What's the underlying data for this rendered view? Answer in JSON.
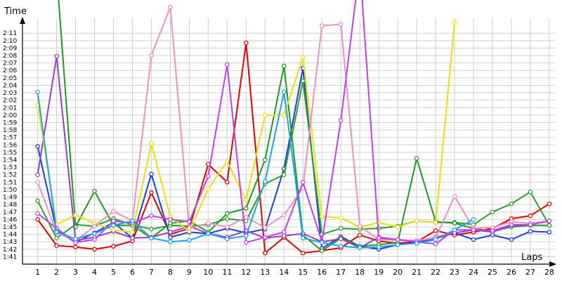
{
  "chart_data": {
    "type": "line",
    "ylabel": "Time",
    "xlabel": "Laps",
    "x": [
      1,
      2,
      3,
      4,
      5,
      6,
      7,
      8,
      9,
      10,
      11,
      12,
      13,
      14,
      15,
      16,
      17,
      18,
      19,
      20,
      21,
      22,
      23,
      24,
      25,
      26,
      27,
      28
    ],
    "xlim": [
      0.2,
      28.3
    ],
    "ylim": [
      "1:40",
      "2:13"
    ],
    "ytick_labels": [
      "1:41",
      "1:42",
      "1:43",
      "1:44",
      "1:45",
      "1:46",
      "1:47",
      "1:48",
      "1:49",
      "1:50",
      "1:51",
      "1:52",
      "1:53",
      "1:54",
      "1:55",
      "1:56",
      "1:57",
      "1:58",
      "1:59",
      "2:00",
      "2:01",
      "2:02",
      "2:03",
      "2:04",
      "2:05",
      "2:06",
      "2:07",
      "2:08",
      "2:09",
      "2:10",
      "2:11"
    ],
    "grid": true,
    "series": [
      {
        "color": "#e00000",
        "values": [
          "1:46.0",
          "1:42.5",
          "1:42.3",
          "1:42.0",
          "1:42.4",
          "1:43.1",
          "1:49.6",
          "1:44.0",
          "1:44.8",
          "1:53.4",
          "1:51.0",
          "2:09.7",
          "1:41.5",
          "1:43.6",
          "1:41.5",
          "1:41.8",
          "1:42.2",
          "1:43.9",
          "1:43.1",
          "1:42.8",
          "1:43.0",
          "1:44.5",
          "1:43.9",
          "1:44.3",
          "1:44.8",
          "1:46.1",
          "1:46.5",
          "1:48.1"
        ]
      },
      {
        "color": "#1a3fe0",
        "values": [
          "1:55.8",
          "1:44.5",
          "1:42.9",
          "1:44.2",
          "1:45.6",
          "1:43.5",
          "1:52.1",
          "1:43.6",
          "1:44.3",
          "1:44.1",
          "1:44.8",
          "1:44.2",
          "1:44.7",
          "1:52.8",
          "2:06.3",
          "1:42.1",
          "1:43.7",
          "1:42.4",
          "1:42.0",
          "1:42.6",
          "1:42.9",
          "1:43.4",
          "1:44.2",
          "1:43.3",
          "1:43.9",
          "1:43.3",
          "1:44.4",
          "1:44.3"
        ]
      },
      {
        "color": "#2aa02a",
        "values": [
          "1:48.5",
          "1:43.5",
          "1:45.3",
          "1:45.1",
          "1:46.1",
          "1:45.3",
          "1:44.7",
          "1:45.2",
          "1:45.1",
          "1:45.3",
          "1:46.1",
          "1:45.8",
          "1:50.8",
          "1:52.0",
          "2:04.6",
          "1:44.0",
          "1:44.8",
          "1:44.7",
          "1:44.8",
          "1:45.1",
          "1:45.8",
          "1:45.6",
          "1:45.6",
          "1:45.3",
          "1:47.0",
          "1:48.1",
          "1:49.7",
          "1:45.2"
        ]
      },
      {
        "color": "#1f9a1f",
        "values": [
          null,
          "2:19.0",
          "1:45.0",
          "1:49.8",
          "1:45.2",
          "1:45.2",
          "1:43.5",
          "1:45.5",
          "1:45.8",
          "1:44.3",
          "1:46.8",
          "1:47.5",
          "1:54.0",
          "2:06.6",
          "1:43.9",
          "1:41.8",
          "1:43.5",
          "1:42.4",
          "1:42.6",
          "1:42.9",
          "1:54.2",
          "1:45.7",
          "1:45.5",
          "1:44.8",
          "1:44.4",
          "1:45.0",
          "1:45.2",
          "1:45.2"
        ]
      },
      {
        "color": "#9a3fc0",
        "values": [
          "1:52.0",
          "2:07.9",
          "1:43.2",
          "1:43.6",
          "1:44.4",
          "1:43.5",
          "1:43.6",
          "1:44.3",
          "1:45.1",
          "1:44.1",
          "1:43.6",
          "1:44.5",
          "1:43.5",
          "1:43.8",
          "1:44.1",
          "1:43.0",
          "1:43.4",
          "1:42.2",
          "1:43.6",
          "1:43.3",
          "1:43.1",
          "1:43.6",
          "1:44.2",
          "1:44.6",
          "1:44.3",
          "1:45.2",
          "1:45.3",
          "1:45.8"
        ]
      },
      {
        "color": "#e8e010",
        "values": [
          "2:01.4",
          "1:45.3",
          "1:46.6",
          "1:45.5",
          "1:44.6",
          "1:44.3",
          "1:56.2",
          "1:46.4",
          "1:44.4",
          "1:50.1",
          "1:53.8",
          "1:48.6",
          "2:00.0",
          "2:00.0",
          "2:07.8",
          "1:46.4",
          "1:46.2",
          "1:45.0",
          "1:45.6",
          "1:45.0",
          "1:45.8",
          "1:45.6",
          "2:12.4",
          null,
          null,
          null,
          null,
          null
        ]
      },
      {
        "color": "#f090c0",
        "values": [
          "1:51.0",
          "1:44.2",
          "1:43.1",
          "1:45.1",
          "1:47.1",
          "1:45.8",
          "2:08.0",
          "2:14.5",
          "1:44.8",
          "1:45.5",
          "1:45.0",
          "1:46.3",
          "1:44.9",
          "1:46.6",
          "1:50.2",
          "2:12.0",
          "2:12.2",
          "1:45.1",
          "1:43.3",
          "1:43.2",
          "1:43.2",
          "1:43.5",
          "1:49.1",
          "1:44.8",
          "1:44.9",
          "1:45.7",
          "1:45.5",
          "1:45.8"
        ]
      },
      {
        "color": "#c040f0",
        "values": [
          "1:46.8",
          "1:44.8",
          "1:42.9",
          "1:43.3",
          "1:45.8",
          "1:45.5",
          "1:46.5",
          "1:46.0",
          "1:45.7",
          "1:51.8",
          "2:06.8",
          "1:42.9",
          "1:43.6",
          "1:44.3",
          "1:51.0",
          "1:43.0",
          "1:59.3",
          "2:20.0",
          "1:43.5",
          "1:43.3",
          "1:43.0",
          "1:42.7",
          "1:44.6",
          "1:44.6",
          "1:44.5",
          "1:45.3",
          "1:45.3",
          "1:45.8"
        ]
      },
      {
        "color": "#20a0f0",
        "values": [
          "2:03.1",
          "1:44.3",
          "1:43.4",
          "1:44.1",
          "1:45.2",
          "1:45.8",
          "1:43.5",
          "1:43.0",
          "1:43.2",
          "1:44.1",
          "1:43.4",
          "1:43.8",
          "1:51.1",
          "2:03.1",
          "1:43.5",
          "1:42.9",
          "1:42.4",
          "1:42.2",
          "1:42.3",
          "1:42.6",
          "1:42.8",
          "1:43.3",
          "1:44.6",
          "1:46.0",
          null,
          null,
          null,
          null
        ]
      }
    ]
  }
}
